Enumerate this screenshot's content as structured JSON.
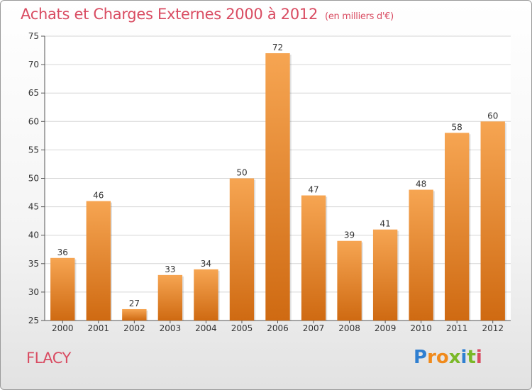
{
  "header": {
    "title": "Achats et Charges Externes 2000 à 2012",
    "subtitle": "(en milliers d'€)"
  },
  "footer": {
    "commune": "FLACY"
  },
  "logo": {
    "text": "Proxiti",
    "letters": [
      "P",
      "r",
      "o",
      "x",
      "i",
      "t",
      "i"
    ],
    "colors": [
      "#2f7fd1",
      "#f08a1c",
      "#f08a1c",
      "#7ab827",
      "#2f7fd1",
      "#7ab827",
      "#d94c62"
    ]
  },
  "colors": {
    "bar_top": "#f6a552",
    "bar_bottom": "#cf6a12",
    "title": "#d94c62",
    "grid": "#d6d6d6"
  },
  "chart_data": {
    "type": "bar",
    "title": "Achats et Charges Externes 2000 à 2012",
    "subtitle": "(en milliers d'€)",
    "categories": [
      "2000",
      "2001",
      "2002",
      "2003",
      "2004",
      "2005",
      "2006",
      "2007",
      "2008",
      "2009",
      "2010",
      "2011",
      "2012"
    ],
    "values": [
      36,
      46,
      27,
      33,
      34,
      50,
      72,
      47,
      39,
      41,
      48,
      58,
      60
    ],
    "ylim": [
      25,
      75
    ],
    "yticks": [
      25,
      30,
      35,
      40,
      45,
      50,
      55,
      60,
      65,
      70,
      75
    ],
    "grid": true,
    "xlabel": "",
    "ylabel": ""
  }
}
